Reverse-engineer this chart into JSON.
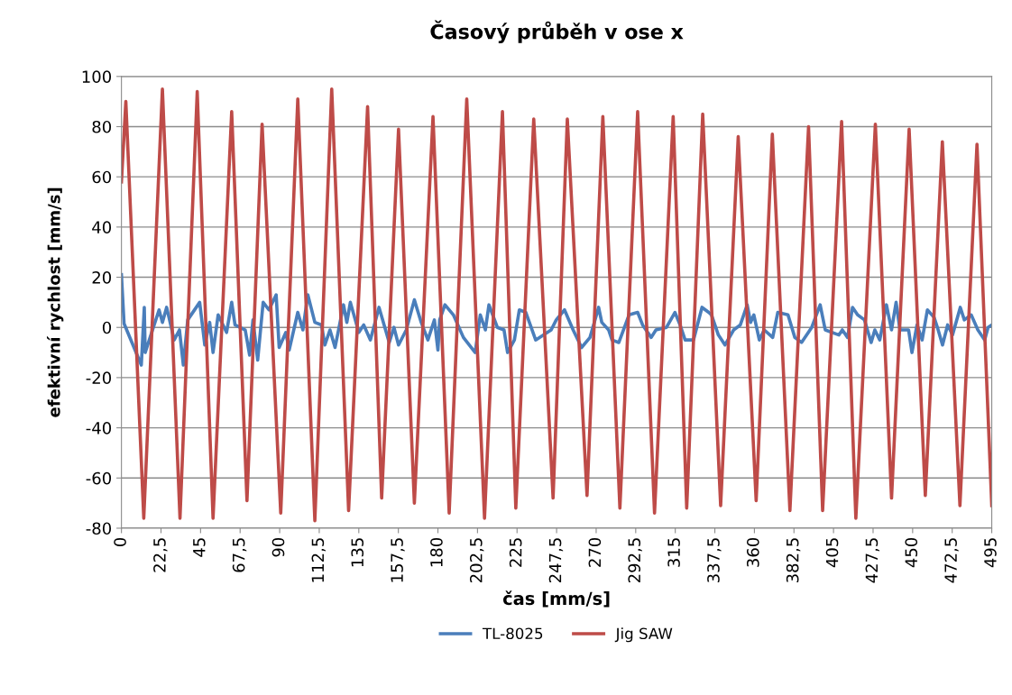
{
  "chart_data": {
    "type": "line",
    "title": "Časový průběh v ose x",
    "xlabel": "čas [mm/s]",
    "ylabel": "efektivní rychlost [mm/s]",
    "xlim": [
      0,
      495
    ],
    "ylim": [
      -80,
      100
    ],
    "xticks": [
      0,
      {
        "value": 22.5,
        "label": "22,5"
      },
      45,
      {
        "value": 67.5,
        "label": "67,5"
      },
      90,
      {
        "value": 112.5,
        "label": "112,5"
      },
      135,
      {
        "value": 157.5,
        "label": "157,5"
      },
      180,
      {
        "value": 202.5,
        "label": "202,5"
      },
      225,
      {
        "value": 247.5,
        "label": "247,5"
      },
      270,
      {
        "value": 292.5,
        "label": "292,5"
      },
      315,
      {
        "value": 337.5,
        "label": "337,5"
      },
      360,
      {
        "value": 382.5,
        "label": "382,5"
      },
      405,
      {
        "value": 427.5,
        "label": "427,5"
      },
      450,
      {
        "value": 472.5,
        "label": "472,5"
      },
      495
    ],
    "yticks": [
      -80,
      -60,
      -40,
      -20,
      0,
      20,
      40,
      60,
      80,
      100
    ],
    "grid": "y",
    "legend": "bottom",
    "marker": "none",
    "line_style": "solid",
    "series": [
      {
        "name": "TL-8025",
        "color": "#4a7ebb",
        "x": [
          0,
          1.5,
          11.3,
          13,
          13.5,
          21.4,
          23.3,
          25.7,
          30,
          33,
          35.2,
          37.7,
          44.5,
          47.4,
          50.2,
          52.1,
          55,
          59.8,
          62.7,
          64.6,
          70.4,
          72.9,
          74.8,
          77.5,
          80.6,
          83.9,
          88,
          89.7,
          93.5,
          95.4,
          100.3,
          103.2,
          106,
          110,
          113.8,
          115.7,
          118.6,
          121.5,
          126.3,
          128.2,
          130.2,
          135,
          137.8,
          141.6,
          146.5,
          152.3,
          155,
          157.6,
          162,
          166.6,
          170.5,
          174.3,
          178,
          180,
          181,
          184,
          188.8,
          194.5,
          201.2,
          204.1,
          207,
          209,
          213.8,
          217.6,
          219.6,
          223.5,
          226.3,
          230,
          235.6,
          244.4,
          247.3,
          252,
          256.9,
          261.7,
          266.5,
          271.4,
          273.2,
          277.1,
          279,
          282.9,
          288.7,
          293.6,
          296.4,
          301.3,
          304,
          310,
          314.8,
          317.7,
          320.6,
          325.4,
          330.2,
          334,
          335.6,
          339.5,
          343.3,
          348.2,
          352,
          355.9,
          357.8,
          359.7,
          362.8,
          365.6,
          370.4,
          373.3,
          379.1,
          383,
          386.8,
          392.6,
          397.4,
          400.3,
          408.1,
          410,
          413,
          415.8,
          418.7,
          422.6,
          426.4,
          428.5,
          431.3,
          435.1,
          438,
          440.6,
          442.8,
          447.7,
          449.6,
          452.5,
          455.4,
          458.4,
          462.2,
          464.1,
          467,
          469.9,
          472.7,
          477.1,
          479.4,
          483.3,
          487.1,
          491,
          492.9,
          495
        ],
        "values": [
          21,
          1.5,
          -15,
          8,
          -10,
          7,
          2,
          8,
          -5,
          -1,
          -15,
          3,
          10,
          -7,
          2,
          -10,
          5,
          -2,
          10,
          1,
          -1,
          -11,
          3,
          -13,
          10,
          7,
          13,
          -8,
          -2,
          -9,
          6,
          -1,
          13,
          2,
          1,
          -7,
          -1,
          -8,
          9,
          2,
          10,
          -2,
          1,
          -5,
          8,
          -6,
          0,
          -7,
          -1,
          11,
          2,
          -5,
          3,
          -9,
          3,
          9,
          5,
          -4,
          -10,
          5,
          -1,
          9,
          0,
          -1,
          -10,
          -5,
          7,
          6,
          -5,
          -1,
          3,
          7,
          -1,
          -8,
          -4,
          8,
          2,
          -1,
          -5,
          -6,
          5,
          6,
          1,
          -4,
          -1,
          0,
          6,
          1,
          -5,
          -5,
          8,
          6,
          5,
          -3,
          -7,
          -1,
          1,
          9,
          2,
          5,
          -5,
          -1,
          -4,
          6,
          5,
          -4,
          -6,
          0,
          9,
          -1,
          -3,
          -1,
          -4,
          8,
          5,
          3,
          -6,
          -1,
          -5,
          9,
          -1,
          10,
          -1,
          -1,
          -10,
          1,
          -5,
          7,
          4,
          0,
          -7,
          1,
          -3,
          8,
          3,
          5,
          -1,
          -5,
          0,
          1
        ]
      },
      {
        "name": "Jig SAW",
        "color": "#be4b48",
        "x": [
          0,
          2.5,
          12.7,
          23.3,
          33.3,
          43.1,
          52.1,
          62.7,
          71.4,
          80,
          90.6,
          100.3,
          110,
          119.6,
          129.2,
          140,
          148,
          157.6,
          166.6,
          177.2,
          186.4,
          196.4,
          206.5,
          216.7,
          224.3,
          234.5,
          245.5,
          253.6,
          264.8,
          273.8,
          283.5,
          293.6,
          303.2,
          313.8,
          321.5,
          330.6,
          340.8,
          350.8,
          361,
          370.2,
          380.2,
          390.8,
          398.8,
          409.6,
          417.7,
          428.8,
          438,
          448,
          457.2,
          466.9,
          476.9,
          486.6,
          495
        ],
        "values": [
          58,
          90,
          -76,
          95,
          -76,
          94,
          -76,
          86,
          -69,
          81,
          -74,
          91,
          -77,
          95,
          -73,
          88,
          -68,
          79,
          -70,
          84,
          -74,
          91,
          -76,
          86,
          -72,
          83,
          -68,
          83,
          -67,
          84,
          -72,
          86,
          -74,
          84,
          -72,
          85,
          -71,
          76,
          -69,
          77,
          -73,
          80,
          -73,
          82,
          -76,
          81,
          -68,
          79,
          -67,
          74,
          -71,
          73,
          -71
        ]
      }
    ]
  }
}
